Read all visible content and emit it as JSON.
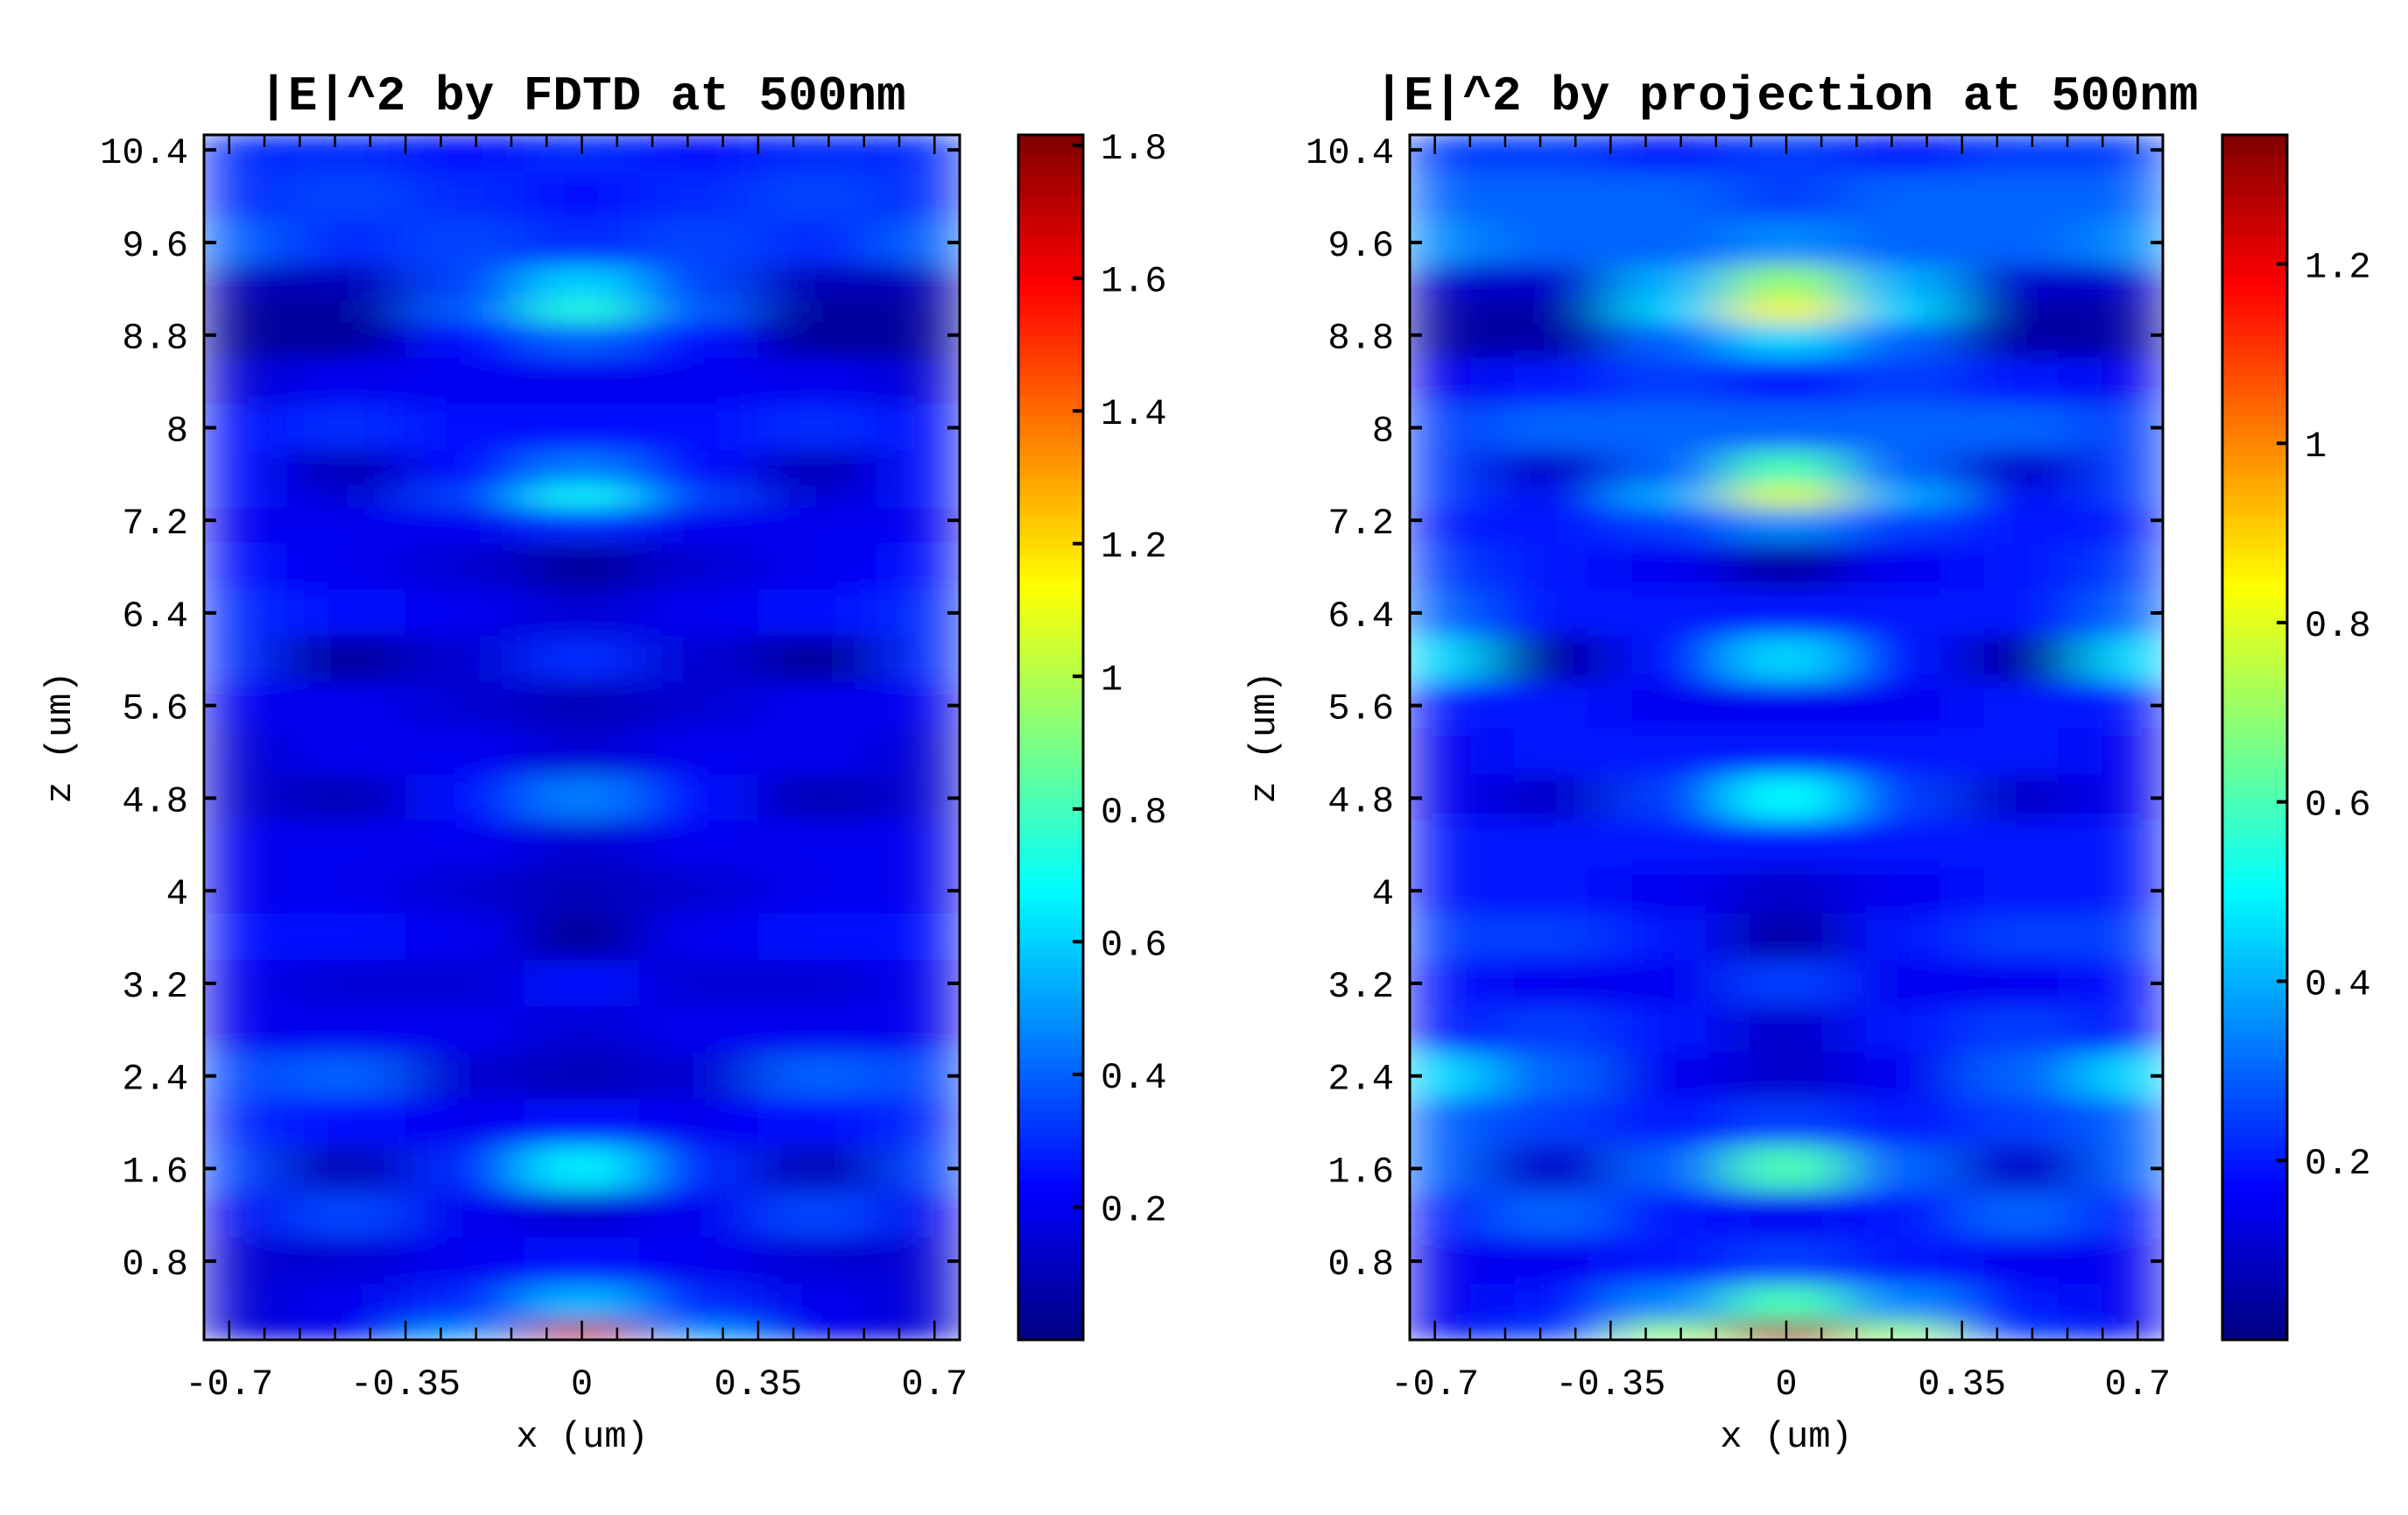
{
  "chart_data": [
    {
      "type": "heatmap",
      "title": "|E|^2 by FDTD at 500nm",
      "xlabel": "x (um)",
      "ylabel": "z (um)",
      "xlim": [
        -0.75,
        0.75
      ],
      "ylim": [
        0.12,
        10.53
      ],
      "xticks": [
        "-0.7",
        "-0.35",
        "0",
        "0.35",
        "0.7"
      ],
      "xtick_values": [
        -0.7,
        -0.35,
        0,
        0.35,
        0.7
      ],
      "yticks": [
        "0.8",
        "1.6",
        "2.4",
        "3.2",
        "4",
        "4.8",
        "5.6",
        "6.4",
        "7.2",
        "8",
        "8.8",
        "9.6",
        "10.4"
      ],
      "ytick_values": [
        0.8,
        1.6,
        2.4,
        3.2,
        4,
        4.8,
        5.6,
        6.4,
        7.2,
        8,
        8.8,
        9.6,
        10.4
      ],
      "colormap": "jet",
      "clim": [
        0.0,
        1.816
      ],
      "cbar_ticks": [
        "0.2",
        "0.4",
        "0.6",
        "0.8",
        "1",
        "1.2",
        "1.4",
        "1.6",
        "1.8"
      ],
      "cbar_tick_values": [
        0.2,
        0.4,
        0.6,
        0.8,
        1,
        1.2,
        1.4,
        1.6,
        1.8
      ],
      "x": [
        -0.7,
        -0.47,
        -0.23,
        0,
        0.23,
        0.47,
        0.7
      ],
      "z": [
        10.4,
        10.0,
        9.6,
        9.2,
        9.0,
        8.8,
        8.4,
        8.0,
        7.6,
        7.4,
        7.2,
        6.8,
        6.4,
        6.0,
        5.6,
        5.2,
        4.8,
        4.4,
        4.0,
        3.6,
        3.2,
        2.8,
        2.4,
        2.0,
        1.6,
        1.2,
        0.8,
        0.4,
        0.15
      ],
      "values": [
        [
          0.3,
          0.3,
          0.25,
          0.3,
          0.25,
          0.3,
          0.3
        ],
        [
          0.3,
          0.35,
          0.3,
          0.25,
          0.3,
          0.35,
          0.3
        ],
        [
          0.4,
          0.3,
          0.35,
          0.3,
          0.35,
          0.3,
          0.4
        ],
        [
          0.1,
          0.1,
          0.35,
          0.6,
          0.35,
          0.1,
          0.1
        ],
        [
          0.05,
          0.05,
          0.4,
          0.75,
          0.4,
          0.05,
          0.05
        ],
        [
          0.05,
          0.05,
          0.25,
          0.4,
          0.25,
          0.05,
          0.05
        ],
        [
          0.15,
          0.2,
          0.2,
          0.2,
          0.2,
          0.2,
          0.15
        ],
        [
          0.25,
          0.3,
          0.25,
          0.25,
          0.25,
          0.3,
          0.25
        ],
        [
          0.25,
          0.1,
          0.25,
          0.45,
          0.25,
          0.1,
          0.25
        ],
        [
          0.25,
          0.15,
          0.35,
          0.7,
          0.35,
          0.15,
          0.25
        ],
        [
          0.2,
          0.2,
          0.2,
          0.3,
          0.2,
          0.2,
          0.2
        ],
        [
          0.25,
          0.2,
          0.15,
          0.05,
          0.15,
          0.2,
          0.25
        ],
        [
          0.3,
          0.25,
          0.2,
          0.15,
          0.2,
          0.25,
          0.3
        ],
        [
          0.3,
          0.05,
          0.15,
          0.3,
          0.15,
          0.05,
          0.3
        ],
        [
          0.2,
          0.2,
          0.15,
          0.1,
          0.15,
          0.2,
          0.2
        ],
        [
          0.15,
          0.2,
          0.2,
          0.15,
          0.2,
          0.2,
          0.15
        ],
        [
          0.15,
          0.1,
          0.25,
          0.45,
          0.25,
          0.1,
          0.15
        ],
        [
          0.2,
          0.2,
          0.2,
          0.15,
          0.2,
          0.2,
          0.2
        ],
        [
          0.2,
          0.2,
          0.15,
          0.1,
          0.15,
          0.2,
          0.2
        ],
        [
          0.25,
          0.25,
          0.2,
          0.05,
          0.2,
          0.25,
          0.25
        ],
        [
          0.2,
          0.15,
          0.15,
          0.25,
          0.15,
          0.15,
          0.2
        ],
        [
          0.2,
          0.2,
          0.2,
          0.15,
          0.2,
          0.2,
          0.2
        ],
        [
          0.35,
          0.4,
          0.15,
          0.1,
          0.15,
          0.4,
          0.35
        ],
        [
          0.3,
          0.25,
          0.2,
          0.25,
          0.2,
          0.25,
          0.3
        ],
        [
          0.35,
          0.1,
          0.3,
          0.65,
          0.3,
          0.1,
          0.35
        ],
        [
          0.2,
          0.35,
          0.2,
          0.15,
          0.2,
          0.35,
          0.2
        ],
        [
          0.15,
          0.15,
          0.2,
          0.25,
          0.2,
          0.15,
          0.15
        ],
        [
          0.15,
          0.2,
          0.3,
          0.55,
          0.3,
          0.2,
          0.15
        ],
        [
          0.15,
          0.2,
          0.5,
          1.7,
          0.5,
          0.2,
          0.15
        ]
      ]
    },
    {
      "type": "heatmap",
      "title": "|E|^2 by projection at 500nm",
      "xlabel": "x (um)",
      "ylabel": "z (um)",
      "xlim": [
        -0.75,
        0.75
      ],
      "ylim": [
        0.12,
        10.53
      ],
      "xticks": [
        "-0.7",
        "-0.35",
        "0",
        "0.35",
        "0.7"
      ],
      "xtick_values": [
        -0.7,
        -0.35,
        0,
        0.35,
        0.7
      ],
      "yticks": [
        "0.8",
        "1.6",
        "2.4",
        "3.2",
        "4",
        "4.8",
        "5.6",
        "6.4",
        "7.2",
        "8",
        "8.8",
        "9.6",
        "10.4"
      ],
      "ytick_values": [
        0.8,
        1.6,
        2.4,
        3.2,
        4,
        4.8,
        5.6,
        6.4,
        7.2,
        8,
        8.8,
        9.6,
        10.4
      ],
      "colormap": "jet",
      "clim": [
        0.0,
        1.344
      ],
      "cbar_ticks": [
        "0.2",
        "0.4",
        "0.6",
        "0.8",
        "1",
        "1.2"
      ],
      "cbar_tick_values": [
        0.2,
        0.4,
        0.6,
        0.8,
        1,
        1.2
      ],
      "x": [
        -0.7,
        -0.47,
        -0.23,
        0,
        0.23,
        0.47,
        0.7
      ],
      "z": [
        10.4,
        10.0,
        9.6,
        9.2,
        9.0,
        8.8,
        8.4,
        8.0,
        7.6,
        7.4,
        7.2,
        6.8,
        6.4,
        6.0,
        5.6,
        5.2,
        4.8,
        4.4,
        4.0,
        3.6,
        3.2,
        2.8,
        2.4,
        2.0,
        1.6,
        1.2,
        0.8,
        0.4,
        0.15
      ],
      "values": [
        [
          0.25,
          0.25,
          0.2,
          0.25,
          0.2,
          0.25,
          0.25
        ],
        [
          0.3,
          0.3,
          0.3,
          0.25,
          0.3,
          0.3,
          0.3
        ],
        [
          0.35,
          0.3,
          0.3,
          0.35,
          0.3,
          0.3,
          0.35
        ],
        [
          0.1,
          0.1,
          0.4,
          0.7,
          0.4,
          0.1,
          0.1
        ],
        [
          0.05,
          0.05,
          0.45,
          0.85,
          0.45,
          0.05,
          0.05
        ],
        [
          0.05,
          0.05,
          0.3,
          0.45,
          0.3,
          0.05,
          0.05
        ],
        [
          0.15,
          0.2,
          0.25,
          0.2,
          0.25,
          0.2,
          0.15
        ],
        [
          0.25,
          0.3,
          0.3,
          0.3,
          0.3,
          0.3,
          0.25
        ],
        [
          0.25,
          0.1,
          0.3,
          0.6,
          0.3,
          0.1,
          0.25
        ],
        [
          0.25,
          0.15,
          0.4,
          0.8,
          0.4,
          0.15,
          0.25
        ],
        [
          0.2,
          0.2,
          0.25,
          0.35,
          0.25,
          0.2,
          0.2
        ],
        [
          0.25,
          0.2,
          0.15,
          0.05,
          0.15,
          0.2,
          0.25
        ],
        [
          0.3,
          0.2,
          0.2,
          0.2,
          0.2,
          0.2,
          0.3
        ],
        [
          0.45,
          0.05,
          0.2,
          0.45,
          0.2,
          0.05,
          0.45
        ],
        [
          0.2,
          0.2,
          0.15,
          0.15,
          0.15,
          0.2,
          0.2
        ],
        [
          0.15,
          0.2,
          0.2,
          0.2,
          0.2,
          0.2,
          0.15
        ],
        [
          0.15,
          0.1,
          0.25,
          0.5,
          0.25,
          0.1,
          0.15
        ],
        [
          0.2,
          0.2,
          0.2,
          0.2,
          0.2,
          0.2,
          0.2
        ],
        [
          0.2,
          0.2,
          0.15,
          0.1,
          0.15,
          0.2,
          0.2
        ],
        [
          0.25,
          0.25,
          0.2,
          0.05,
          0.2,
          0.25,
          0.25
        ],
        [
          0.2,
          0.15,
          0.15,
          0.25,
          0.15,
          0.15,
          0.2
        ],
        [
          0.2,
          0.25,
          0.2,
          0.1,
          0.2,
          0.25,
          0.2
        ],
        [
          0.45,
          0.3,
          0.15,
          0.1,
          0.15,
          0.3,
          0.45
        ],
        [
          0.3,
          0.25,
          0.2,
          0.25,
          0.2,
          0.25,
          0.3
        ],
        [
          0.3,
          0.1,
          0.3,
          0.6,
          0.3,
          0.1,
          0.3
        ],
        [
          0.2,
          0.3,
          0.2,
          0.15,
          0.2,
          0.3,
          0.2
        ],
        [
          0.15,
          0.15,
          0.2,
          0.25,
          0.2,
          0.15,
          0.15
        ],
        [
          0.15,
          0.2,
          0.35,
          0.6,
          0.35,
          0.2,
          0.15
        ],
        [
          0.15,
          0.25,
          0.7,
          1.3,
          0.7,
          0.25,
          0.15
        ]
      ]
    }
  ]
}
